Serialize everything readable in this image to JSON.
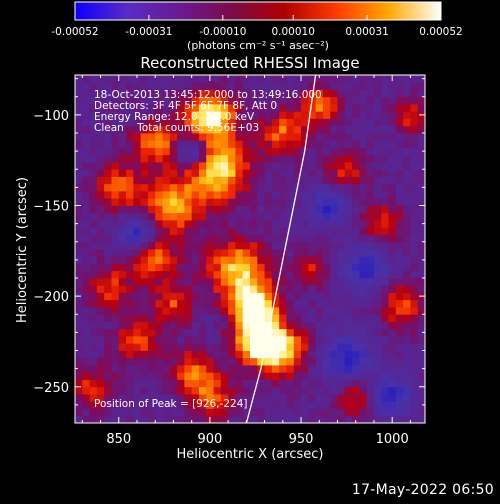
{
  "colorbar": {
    "tick_labels": [
      "-0.00052",
      "-0.00031",
      "-0.00010",
      "0.00010",
      "0.00031",
      "0.00052"
    ],
    "tick_values": [
      -0.00052,
      -0.00031,
      -0.0001,
      0.0001,
      0.00031,
      0.00052
    ],
    "range": [
      -0.00052,
      0.00052
    ],
    "units": "(photons cm⁻² s⁻¹ asec⁻²)",
    "colormap": [
      "#0b00ff",
      "#5a2bc4",
      "#6a1a92",
      "#7a0c48",
      "#b00000",
      "#ff3a00",
      "#ffa800",
      "#ffffff"
    ]
  },
  "plot": {
    "title": "Reconstructed RHESSI Image",
    "annotation_lines": [
      "18-Oct-2013 13:45:12.000 to 13:49:16.000",
      "Detectors: 3F 4F 5F 6F 7F 8F, Att 0",
      "Energy Range: 12.0 - 25.0 keV",
      "Clean    Total counts: 9.56E+03"
    ],
    "peak_label": "Position of Peak = [926,-224]"
  },
  "footer": {
    "timestamp": "17-May-2022 06:50"
  },
  "chart_data": {
    "type": "heatmap",
    "title": "Reconstructed RHESSI Image",
    "xlabel": "Heliocentric X (arcsec)",
    "ylabel": "Heliocentric Y (arcsec)",
    "xlim": [
      826,
      1018
    ],
    "ylim": [
      -270,
      -78
    ],
    "x_ticks": [
      850,
      900,
      950,
      1000
    ],
    "y_ticks": [
      -250,
      -200,
      -150,
      -100
    ],
    "x_tick_labels": [
      "850",
      "900",
      "950",
      "1000"
    ],
    "y_tick_labels": [
      "−250",
      "−200",
      "−150",
      "−100"
    ],
    "peak": [
      926,
      -224
    ],
    "limb_curve": [
      [
        920,
        -270
      ],
      [
        928,
        -240
      ],
      [
        936,
        -200
      ],
      [
        944,
        -160
      ],
      [
        952,
        -120
      ],
      [
        958,
        -78
      ]
    ],
    "bright_regions": [
      [
        900,
        -100,
        1.0,
        10
      ],
      [
        905,
        -130,
        0.9,
        12
      ],
      [
        880,
        -150,
        0.75,
        11
      ],
      [
        870,
        -115,
        0.65,
        9
      ],
      [
        850,
        -140,
        0.55,
        10
      ],
      [
        845,
        -195,
        0.5,
        9
      ],
      [
        860,
        -225,
        0.55,
        9
      ],
      [
        915,
        -185,
        0.8,
        12
      ],
      [
        925,
        -205,
        0.85,
        9
      ],
      [
        926,
        -224,
        1.0,
        9
      ],
      [
        940,
        -230,
        0.8,
        10
      ],
      [
        940,
        -110,
        0.6,
        9
      ],
      [
        975,
        -130,
        0.5,
        8
      ],
      [
        995,
        -160,
        0.5,
        8
      ],
      [
        1005,
        -205,
        0.55,
        9
      ],
      [
        980,
        -255,
        0.5,
        8
      ],
      [
        900,
        -255,
        0.55,
        10
      ],
      [
        835,
        -250,
        0.45,
        9
      ],
      [
        960,
        -95,
        0.6,
        8
      ],
      [
        890,
        -240,
        0.5,
        8
      ],
      [
        1010,
        -100,
        0.5,
        7
      ],
      [
        955,
        -185,
        0.45,
        7
      ],
      [
        870,
        -180,
        0.6,
        9
      ],
      [
        880,
        -205,
        0.5,
        8
      ]
    ],
    "dark_regions": [
      [
        975,
        -235,
        10
      ],
      [
        985,
        -185,
        9
      ],
      [
        860,
        -165,
        7
      ],
      [
        1000,
        -255,
        8
      ],
      [
        965,
        -150,
        7
      ],
      [
        890,
        -120,
        6
      ]
    ]
  }
}
